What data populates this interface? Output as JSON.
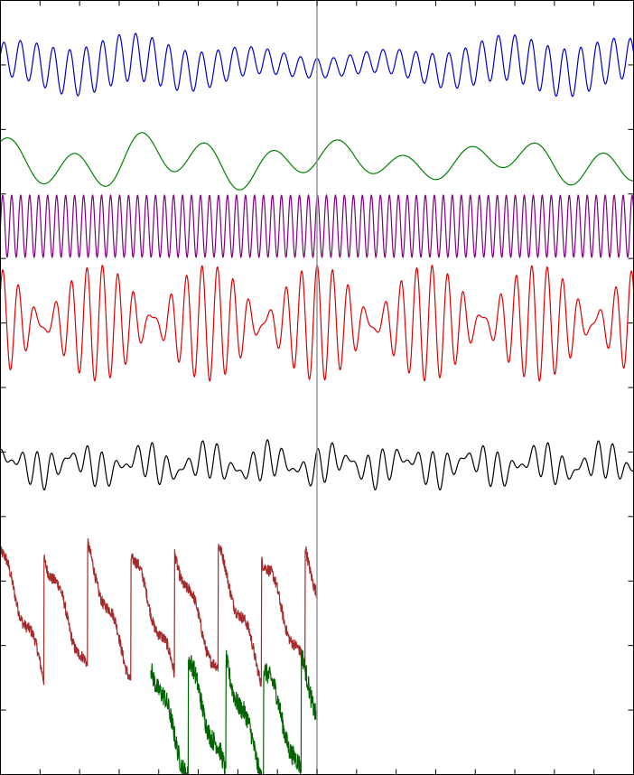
{
  "chart_data": {
    "type": "line",
    "title": "",
    "xlabel": "",
    "ylabel": "",
    "xlim": [
      0,
      16
    ],
    "ylim": [
      0,
      12
    ],
    "grid": false,
    "legend": "none",
    "x_ticks": [
      1,
      2,
      3,
      4,
      5,
      6,
      7,
      8,
      9,
      10,
      11,
      12,
      13,
      14,
      15,
      16
    ],
    "y_ticks": [
      1,
      2,
      3,
      4,
      5,
      6,
      7,
      8,
      9,
      10,
      11
    ],
    "vertical_marker_x": 8,
    "series": [
      {
        "color": "#0000cc",
        "baseline": 11,
        "amplitude": 0.5,
        "x_range": [
          0,
          16
        ],
        "components": [
          {
            "freq": 2.4,
            "amp": 0.75,
            "phase": 0.3
          },
          {
            "freq": 0.32,
            "amp": 0.25,
            "phase": 1.1
          }
        ],
        "envelope": {
          "freq": 0.09,
          "depth": 0.3
        },
        "noise": 0
      },
      {
        "color": "#008000",
        "baseline": 9.5,
        "amplitude": 0.45,
        "x_range": [
          0,
          16
        ],
        "components": [
          {
            "freq": 0.6,
            "amp": 0.7,
            "phase": 0.8
          },
          {
            "freq": 0.23,
            "amp": 0.4,
            "phase": 2.0
          }
        ],
        "envelope": {
          "freq": 0.07,
          "depth": 0.2
        },
        "noise": 0
      },
      {
        "color": "#800080",
        "baseline": 8.5,
        "amplitude": 0.48,
        "x_range": [
          0,
          16
        ],
        "components": [
          {
            "freq": 4.4,
            "amp": 1.0,
            "phase": 0.0
          }
        ],
        "envelope": {
          "freq": 0,
          "depth": 0
        },
        "noise": 0
      },
      {
        "color": "#e00000",
        "baseline": 7,
        "amplitude": 0.9,
        "x_range": [
          0,
          16
        ],
        "components": [
          {
            "freq": 2.4,
            "amp": 0.55,
            "phase": 0.3
          },
          {
            "freq": 2.76,
            "amp": 0.45,
            "phase": 1.0
          }
        ],
        "envelope": {
          "freq": 0,
          "depth": 0
        },
        "noise": 0
      },
      {
        "color": "#000000",
        "baseline": 4.8,
        "amplitude": 0.4,
        "x_range": [
          0,
          16
        ],
        "components": [
          {
            "freq": 2.4,
            "amp": 0.4,
            "phase": 0.3
          },
          {
            "freq": 3.1,
            "amp": 0.35,
            "phase": 2.2
          },
          {
            "freq": 0.6,
            "amp": 0.25,
            "phase": 0.8
          }
        ],
        "envelope": {
          "freq": 0,
          "depth": 0
        },
        "noise": 0
      },
      {
        "color": "#a52a2a",
        "baseline": 2.5,
        "amplitude": 0.95,
        "x_range": [
          0,
          8
        ],
        "shape": "sawtooth",
        "sawtooth_period": 1.1,
        "noise": 0.1
      },
      {
        "color": "#006400",
        "baseline": 0.85,
        "amplitude": 0.9,
        "x_range": [
          3.8,
          8
        ],
        "shape": "sawtooth",
        "sawtooth_period": 0.95,
        "noise": 0.18
      }
    ]
  }
}
